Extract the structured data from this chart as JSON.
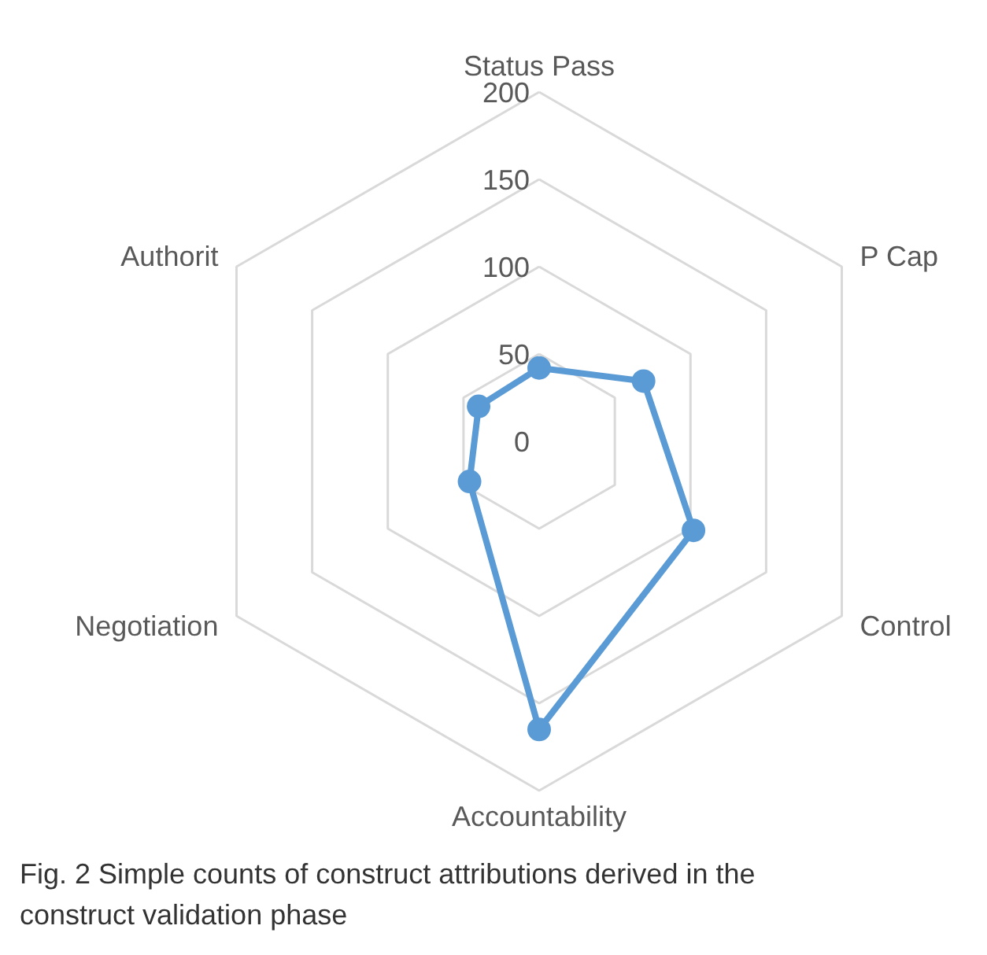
{
  "chart_data": {
    "type": "radar",
    "categories": [
      "Status Pass",
      "P Cap",
      "Control",
      "Accountability",
      "Negotiation",
      "Authorit"
    ],
    "series": [
      {
        "color": "#5b9bd5",
        "values": [
          42,
          69,
          102,
          165,
          46,
          40
        ]
      }
    ],
    "ylim": [
      0,
      200
    ],
    "yticks": [
      0,
      50,
      100,
      150,
      200
    ],
    "marker": "circle",
    "annotations": [
      "Fig. 2 Simple counts of construct attributions derived in the construct validation phase"
    ]
  }
}
